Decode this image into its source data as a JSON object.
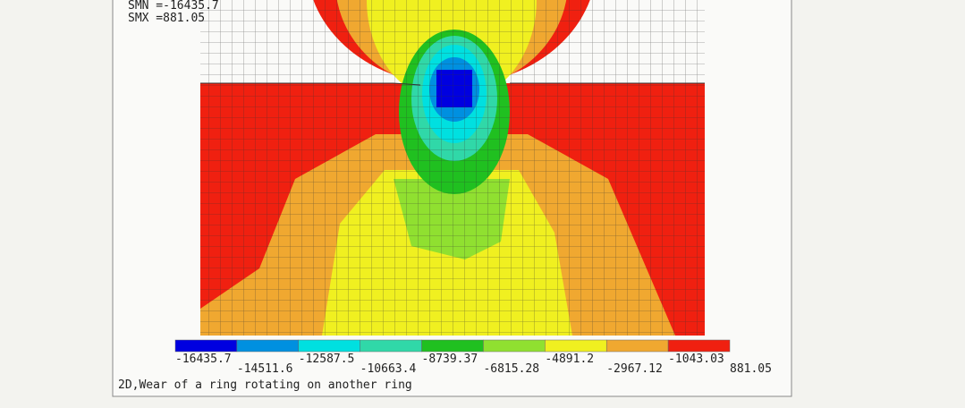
{
  "info": [
    "SMN =-16435.7",
    "SMX =881.05"
  ],
  "legend": {
    "labels": [
      -16435.7,
      -14511.6,
      -12587.5,
      -10663.4,
      -8739.37,
      -6815.28,
      -4891.2,
      -2967.12,
      -1043.03,
      881.05
    ],
    "colors": [
      "#0000e0",
      "#0090e0",
      "#00e0e0",
      "#30d8a8",
      "#20c020",
      "#90e030",
      "#f0f020",
      "#f0a830",
      "#f02010"
    ]
  },
  "caption": "2D,Wear of a ring rotating on another ring"
}
